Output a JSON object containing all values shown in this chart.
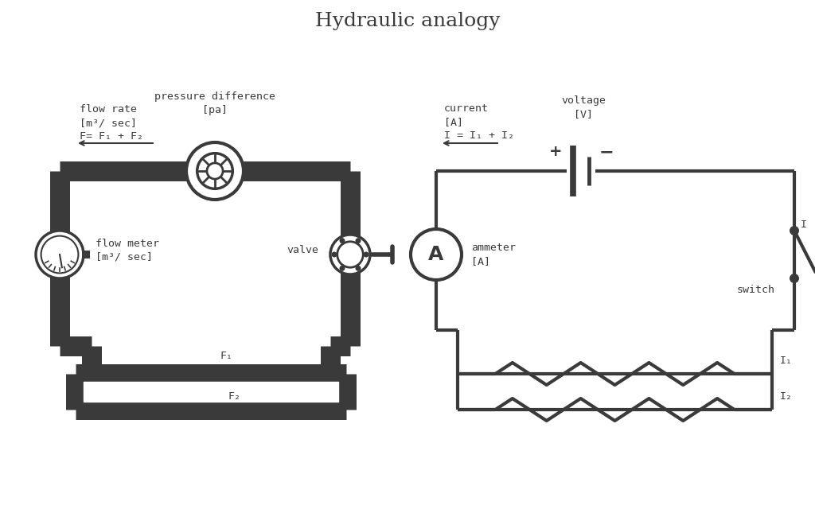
{
  "title": "Hydraulic analogy",
  "title_fontsize": 18,
  "title_font": "DejaVu Serif",
  "background_color": "#ffffff",
  "pipe_color": "#3a3a3a",
  "wire_color": "#3a3a3a",
  "font_color": "#3a3a3a",
  "font_size": 9.5,
  "font_family": "DejaVu Sans Mono",
  "pipe_lw": 18,
  "wire_lw": 3.0,
  "labels": {
    "flow_rate": "flow rate\n[m³/ sec]\nF= F₁ + F₂",
    "pressure_diff": "pressure difference\n[pa]",
    "flow_meter": "flow meter\n[m³/ sec]",
    "valve": "valve",
    "F1": "F₁",
    "F2": "F₂",
    "current": "current\n[A]\nI = I₁ + I₂",
    "voltage": "voltage\n[V]",
    "ammeter": "ammeter\n[A]",
    "switch": "switch",
    "I": "I",
    "I1": "I₁",
    "I2": "I₂",
    "plus": "+",
    "minus": "−"
  }
}
